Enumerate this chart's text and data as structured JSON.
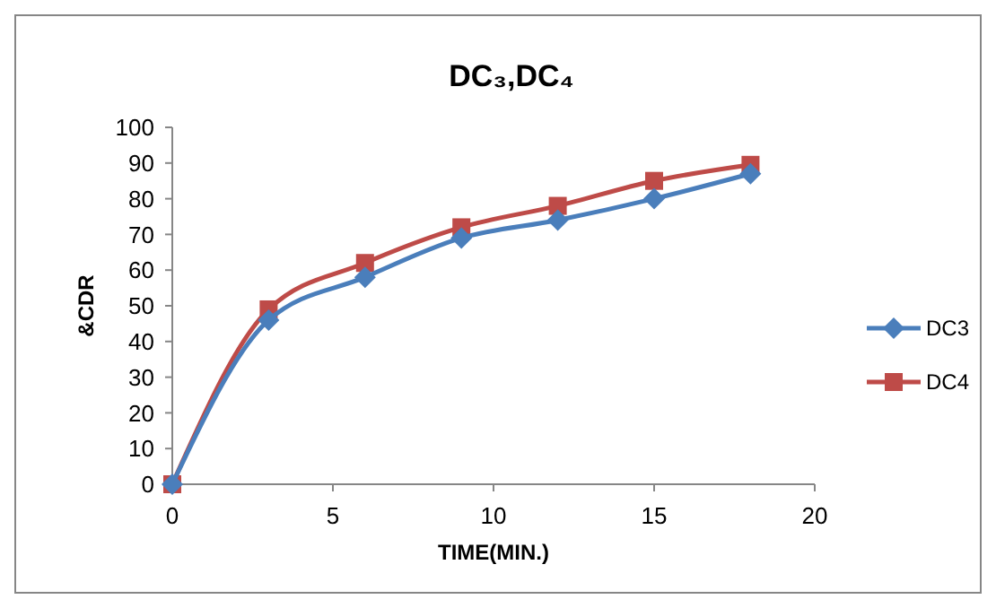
{
  "chart_data": {
    "type": "line",
    "title": "DC₃,DC₄",
    "xlabel": "TIME(MIN.)",
    "ylabel": "&CDR",
    "x": [
      0,
      3,
      6,
      9,
      12,
      15,
      18
    ],
    "series": [
      {
        "name": "DC3",
        "color": "#4a7ebb",
        "marker": "diamond",
        "values": [
          0,
          46,
          58,
          69,
          74,
          80,
          87
        ]
      },
      {
        "name": "DC4",
        "color": "#be4b48",
        "marker": "square",
        "values": [
          0,
          49,
          62,
          72,
          78,
          85,
          89.5
        ]
      }
    ],
    "xlim": [
      0,
      20
    ],
    "xticks": [
      0,
      5,
      10,
      15,
      20
    ],
    "ylim": [
      0,
      100
    ],
    "yticks": [
      0,
      10,
      20,
      30,
      40,
      50,
      60,
      70,
      80,
      90,
      100
    ],
    "grid": false,
    "legend": "right",
    "line_style": "solid"
  }
}
